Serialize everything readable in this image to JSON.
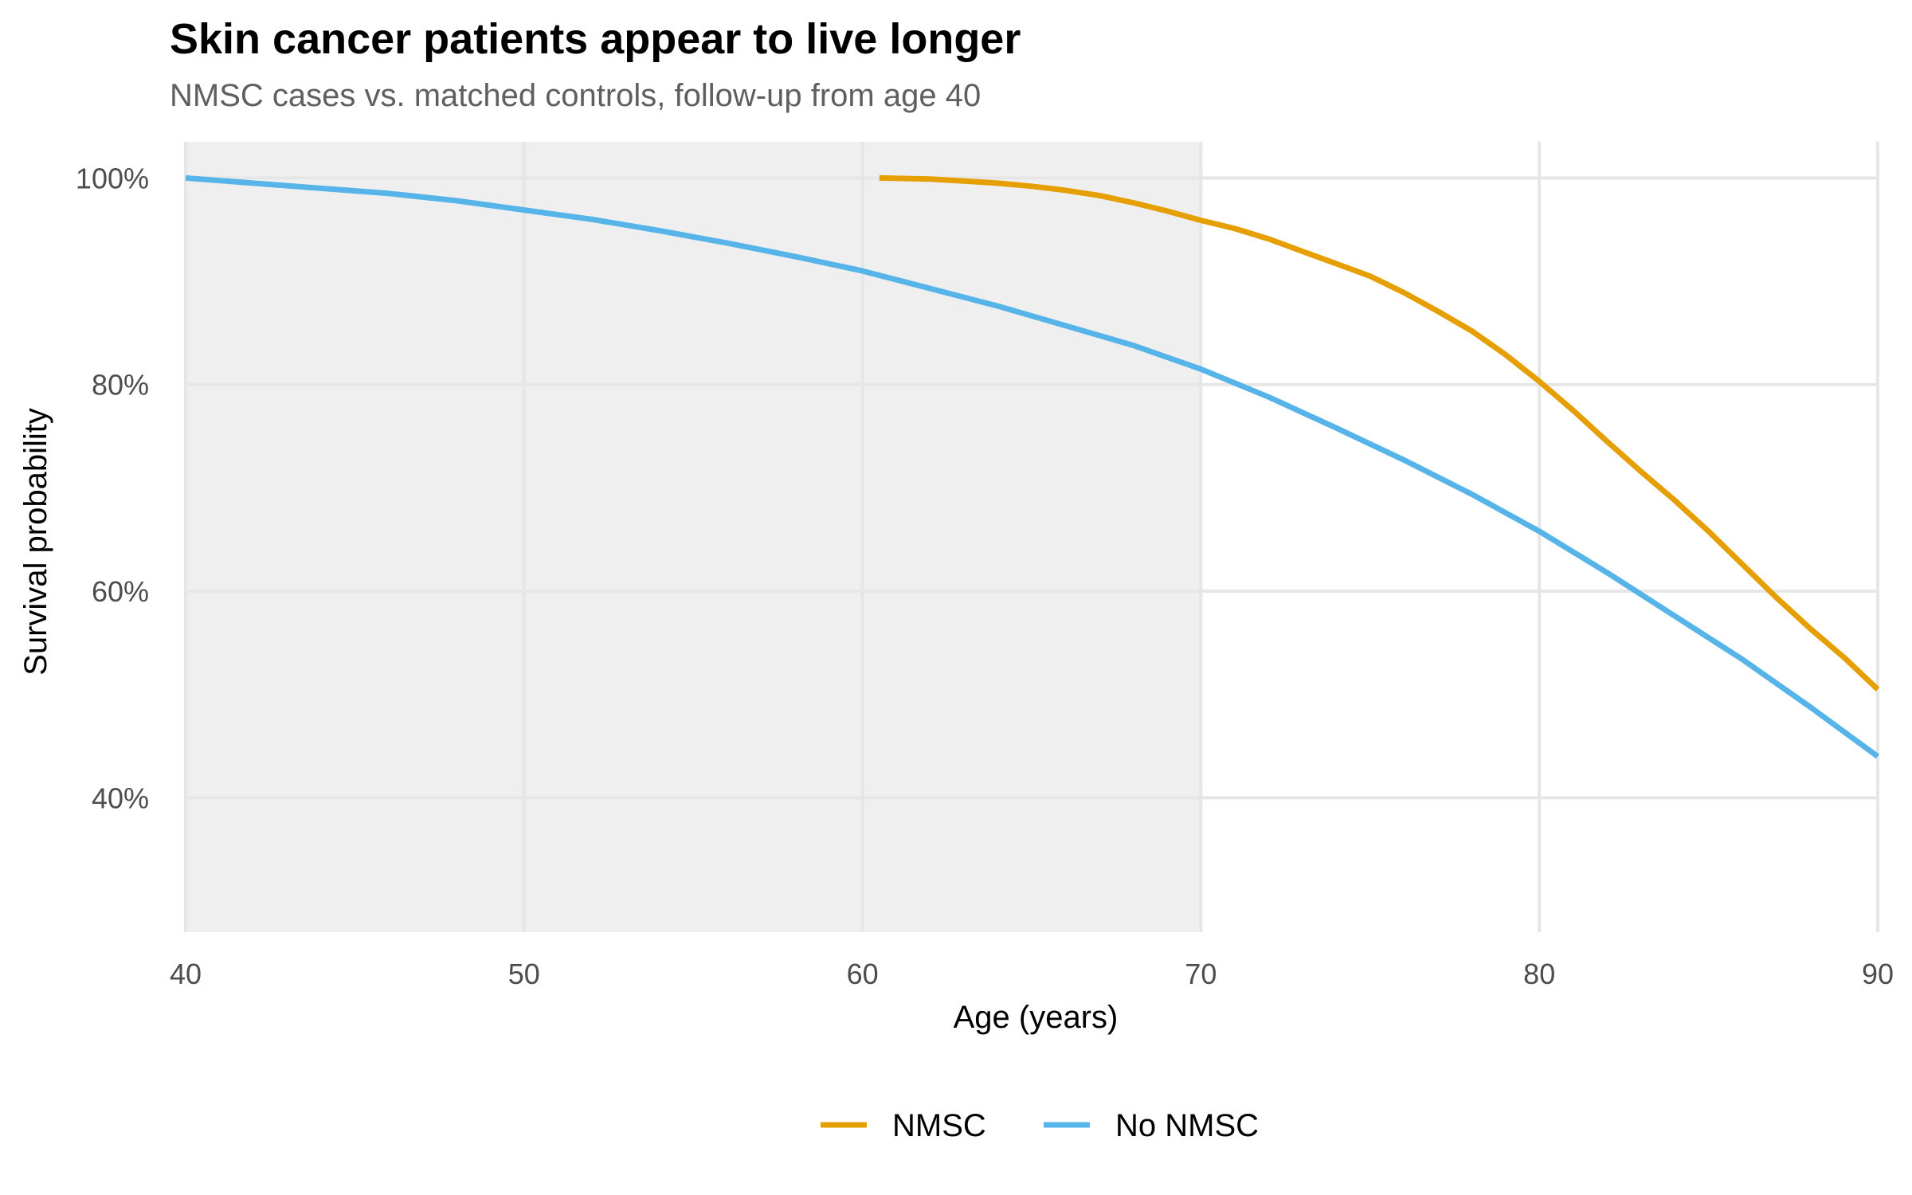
{
  "chart_data": {
    "type": "line",
    "title": "Skin cancer patients appear to live longer",
    "subtitle": "NMSC cases vs. matched controls, follow-up from age 40",
    "xlabel": "Age (years)",
    "ylabel": "Survival probability",
    "xlim": [
      40,
      90
    ],
    "ylim": [
      0.27,
      1.035
    ],
    "x_ticks": [
      40,
      50,
      60,
      70,
      80,
      90
    ],
    "x_tick_labels": [
      "40",
      "50",
      "60",
      "70",
      "80",
      "90"
    ],
    "y_ticks": [
      0.4,
      0.6,
      0.8,
      1.0
    ],
    "y_tick_labels": [
      "40%",
      "60%",
      "80%",
      "100%"
    ],
    "grid": true,
    "shaded_region": {
      "x_from": 40,
      "x_to": 70,
      "color": "#efefef"
    },
    "legend_position": "bottom",
    "series": [
      {
        "name": "NMSC",
        "color": "#E69F00",
        "x": [
          60.5,
          62,
          63,
          64,
          65,
          66,
          67,
          68,
          69,
          70,
          71,
          72,
          73,
          74,
          75,
          76,
          77,
          78,
          79,
          80,
          81,
          82,
          83,
          84,
          85,
          86,
          87,
          88,
          89,
          90
        ],
        "y": [
          1.0,
          0.999,
          0.997,
          0.995,
          0.992,
          0.988,
          0.983,
          0.976,
          0.968,
          0.959,
          0.951,
          0.941,
          0.929,
          0.917,
          0.905,
          0.889,
          0.871,
          0.852,
          0.829,
          0.803,
          0.775,
          0.745,
          0.716,
          0.688,
          0.658,
          0.626,
          0.594,
          0.564,
          0.536,
          0.505
        ]
      },
      {
        "name": "No NMSC",
        "color": "#56B4E9",
        "x": [
          40,
          42,
          44,
          46,
          48,
          50,
          52,
          54,
          56,
          58,
          60,
          62,
          64,
          66,
          68,
          70,
          72,
          74,
          76,
          78,
          80,
          82,
          84,
          86,
          88,
          90
        ],
        "y": [
          1.0,
          0.995,
          0.99,
          0.985,
          0.978,
          0.969,
          0.96,
          0.949,
          0.937,
          0.924,
          0.91,
          0.893,
          0.876,
          0.857,
          0.838,
          0.815,
          0.788,
          0.758,
          0.727,
          0.694,
          0.658,
          0.618,
          0.576,
          0.534,
          0.488,
          0.44
        ]
      }
    ]
  }
}
